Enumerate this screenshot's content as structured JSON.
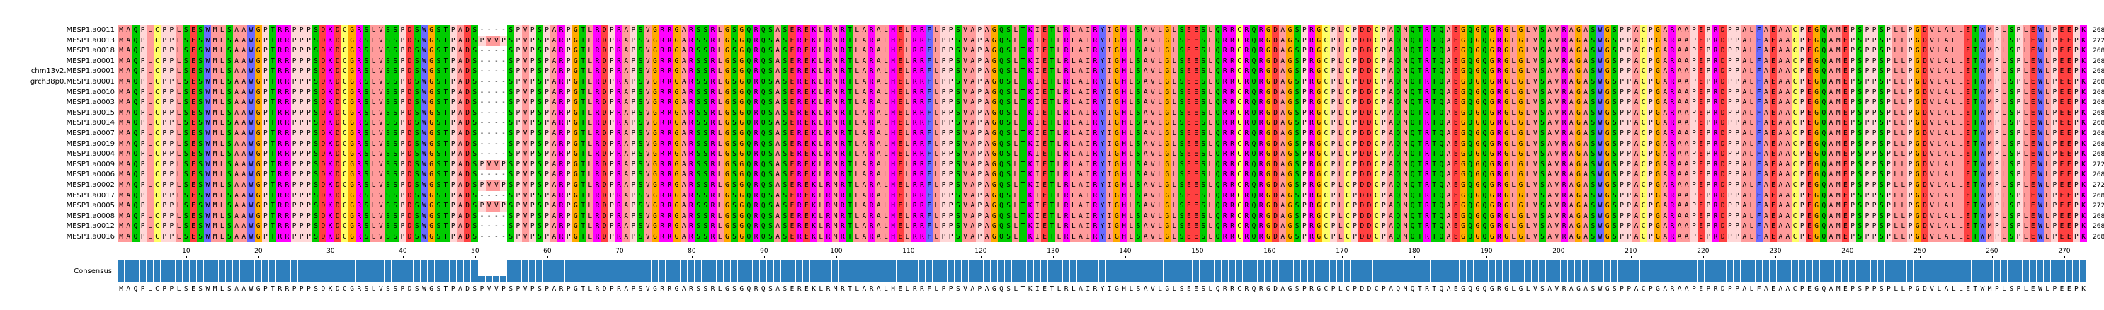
{
  "alignment": {
    "names": [
      "MESP1.a0011",
      "MESP1.a0013",
      "MESP1.a0018",
      "MESP1.a0001",
      "chm13v2.MESP1.a0001",
      "grch38p0.MESP1.a0001",
      "MESP1.a0010",
      "MESP1.a0003",
      "MESP1.a0015",
      "MESP1.a0014",
      "MESP1.a0007",
      "MESP1.a0019",
      "MESP1.a0004",
      "MESP1.a0009",
      "MESP1.a0006",
      "MESP1.a0002",
      "MESP1.a0017",
      "MESP1.a0005",
      "MESP1.a0008",
      "MESP1.a0012",
      "MESP1.a0016"
    ],
    "lengths": [
      "268",
      "272",
      "268",
      "268",
      "268",
      "268",
      "268",
      "268",
      "268",
      "268",
      "268",
      "268",
      "268",
      "272",
      "268",
      "272",
      "268",
      "272",
      "268",
      "268",
      "268"
    ],
    "consensus_label": "Consensus",
    "consensus": "MAQPLCPPLSESWMLSAAWGPTRRPPPSDKDCGRSLVSSPDSWGSTPADSPVVPSPVPSPARPGTLRDPRAPSVGRRGARSSRLGSGQRQSASEREKLRMRTLARALHELRRFLPPSVAPAGQSLTKIETLRLAIRYIGHLSAVLGLSEESLQRRCRQRGDAGSPRGCPLCPDDCPAQMQTRTQAEGQGQGRGLGLVSAVRAGASWGSPPACPGARAAPEPRDPPALFAEAACPEGQAMEPSPPSPLLPGDVLALLETWMPLSPLEWLPEEPK",
    "ruler_ticks": [
      "10",
      "20",
      "30",
      "40",
      "50",
      "60",
      "70",
      "80",
      "90",
      "100",
      "110",
      "120",
      "130",
      "140",
      "150",
      "160",
      "170",
      "180",
      "190",
      "200",
      "210",
      "220",
      "230",
      "240",
      "250",
      "260",
      "270"
    ]
  },
  "colors": {
    "hydrophobic": "#ff9b9b",
    "aromatic": "#6a6aff",
    "basic": "#ff00ff",
    "acidic": "#ff4040",
    "polar": "#00cc00",
    "glycine": "#ffaa00",
    "proline": "#ffd7d7",
    "cysteine": "#ffff66",
    "gap": "#ffffff",
    "consensus_bar": "#2e7fbd"
  }
}
